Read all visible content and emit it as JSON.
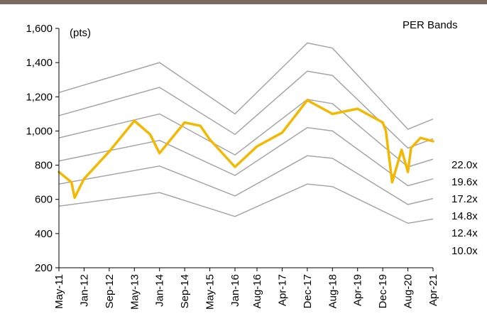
{
  "chart_data": {
    "type": "line",
    "title": "PER Bands",
    "ylabel": "(pts)",
    "ylim": [
      200,
      1600
    ],
    "yticks": [
      200,
      400,
      600,
      800,
      1000,
      1200,
      1400,
      1600
    ],
    "xticks": [
      "May-11",
      "Jan-12",
      "Sep-12",
      "May-13",
      "Jan-14",
      "Sep-14",
      "May-15",
      "Jan-16",
      "Aug-16",
      "Apr-17",
      "Dec-17",
      "Aug-18",
      "Apr-19",
      "Dec-19",
      "Aug-20",
      "Apr-21"
    ],
    "colors": {
      "index": "#f5b800",
      "band": "#a6a6a6",
      "frame": "#7a6a5f"
    },
    "band_x": [
      "May-11",
      "Jan-14",
      "Jan-16",
      "Dec-17",
      "Aug-18",
      "Aug-20",
      "Apr-21"
    ],
    "bands": [
      {
        "name": "22.0x",
        "values": [
          1225,
          1400,
          1100,
          1515,
          1485,
          1010,
          1070
        ]
      },
      {
        "name": "19.6x",
        "values": [
          1090,
          1255,
          980,
          1350,
          1325,
          900,
          955
        ]
      },
      {
        "name": "17.2x",
        "values": [
          960,
          1100,
          860,
          1185,
          1160,
          790,
          835
        ]
      },
      {
        "name": "14.8x",
        "values": [
          825,
          945,
          740,
          1020,
          1000,
          680,
          720
        ]
      },
      {
        "name": "12.4x",
        "values": [
          690,
          795,
          620,
          855,
          840,
          570,
          605
        ]
      },
      {
        "name": "10.0x",
        "values": [
          560,
          640,
          500,
          690,
          675,
          460,
          485
        ]
      }
    ],
    "series": [
      {
        "x": [
          "May-11",
          "Sep-11",
          "Oct-11",
          "Jan-12",
          "Sep-12",
          "May-13",
          "Oct-13",
          "Jan-14",
          "Sep-14",
          "Feb-15",
          "May-15",
          "Jan-16",
          "Aug-16",
          "Apr-17",
          "Dec-17",
          "Aug-18",
          "Apr-19",
          "Dec-19",
          "Jan-20",
          "Mar-20",
          "Jun-20",
          "Aug-20",
          "Sep-20",
          "Dec-20",
          "Apr-21"
        ],
        "values": [
          760,
          700,
          610,
          720,
          880,
          1060,
          980,
          870,
          1050,
          1030,
          950,
          790,
          910,
          990,
          1180,
          1100,
          1130,
          1050,
          1000,
          700,
          890,
          760,
          900,
          960,
          940
        ]
      }
    ]
  }
}
